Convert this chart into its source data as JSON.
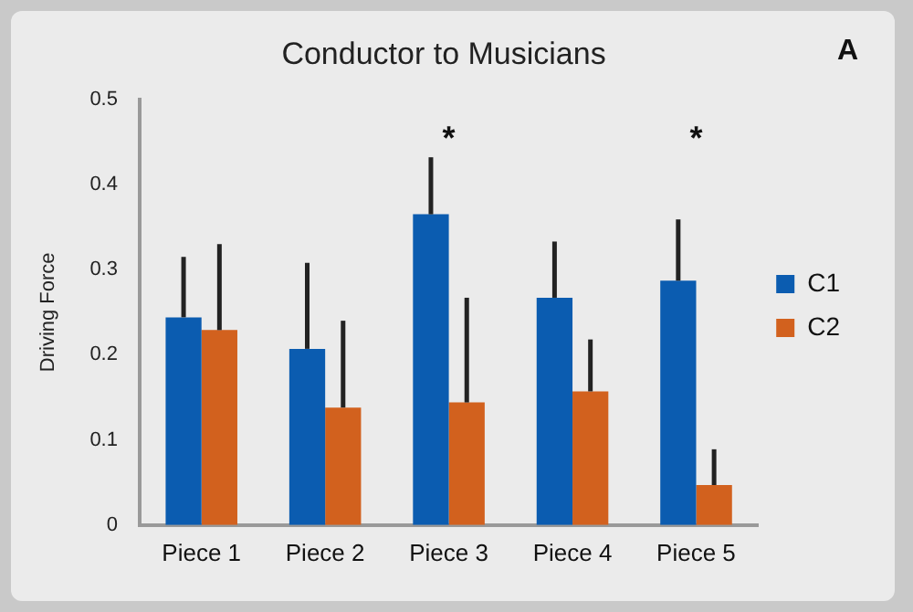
{
  "chart_data": {
    "type": "bar",
    "title": "Conductor to Musicians",
    "ylabel": "Driving Force",
    "categories": [
      "Piece 1",
      "Piece 2",
      "Piece 3",
      "Piece 4",
      "Piece 5"
    ],
    "series": [
      {
        "name": "C1",
        "color": "#0b5cb0",
        "values": [
          0.244,
          0.207,
          0.365,
          0.267,
          0.287
        ],
        "errors": [
          [
            0.244,
            0.315
          ],
          [
            0.207,
            0.308
          ],
          [
            0.365,
            0.432
          ],
          [
            0.267,
            0.333
          ],
          [
            0.287,
            0.359
          ]
        ]
      },
      {
        "name": "C2",
        "color": "#d2611e",
        "values": [
          0.229,
          0.138,
          0.144,
          0.157,
          0.047
        ],
        "errors": [
          [
            0.229,
            0.33
          ],
          [
            0.138,
            0.24
          ],
          [
            0.144,
            0.267
          ],
          [
            0.157,
            0.218
          ],
          [
            0.047,
            0.089
          ]
        ]
      }
    ],
    "ylim": [
      0,
      0.5
    ],
    "yticks": [
      0,
      0.1,
      0.2,
      0.3,
      0.4,
      0.5
    ],
    "grid": false,
    "legend": "right",
    "annotations": [
      "*",
      "*",
      "A"
    ]
  }
}
